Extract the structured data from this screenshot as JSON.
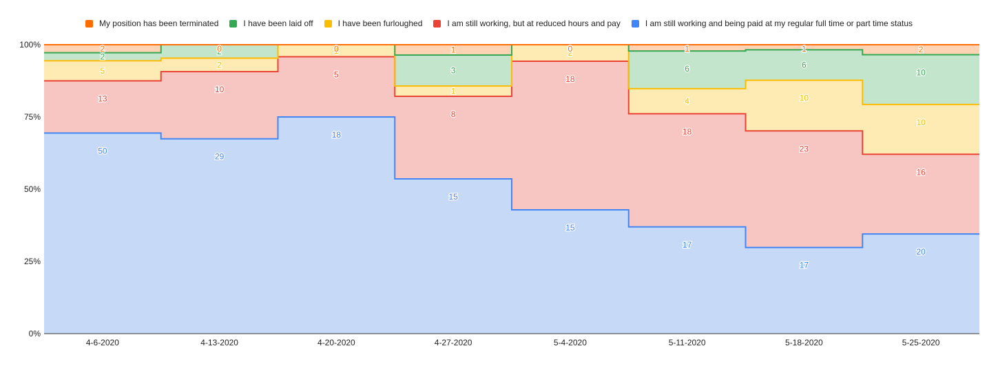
{
  "chart_data": {
    "type": "area",
    "stacked": "percent",
    "step": true,
    "categories": [
      "4-6-2020",
      "4-13-2020",
      "4-20-2020",
      "4-27-2020",
      "5-4-2020",
      "5-11-2020",
      "5-18-2020",
      "5-25-2020"
    ],
    "y_ticks": [
      "0%",
      "25%",
      "50%",
      "75%",
      "100%"
    ],
    "ylim": [
      0,
      100
    ],
    "grid": true,
    "legend_position": "top",
    "series": [
      {
        "key": "regular",
        "name": "I am still working and being paid at my regular full time or part time status",
        "color": "#4285f4",
        "fill": "#c6daf8",
        "values": [
          50,
          29,
          18,
          15,
          15,
          17,
          17,
          20
        ]
      },
      {
        "key": "reduced",
        "name": "I am still working, but at reduced hours and pay",
        "color": "#ea4335",
        "fill": "#f8c6c2",
        "values": [
          13,
          10,
          5,
          8,
          18,
          18,
          23,
          16
        ]
      },
      {
        "key": "furloughed",
        "name": "I have been furloughed",
        "color": "#fbbc04",
        "fill": "#feebb4",
        "values": [
          5,
          2,
          1,
          1,
          2,
          4,
          10,
          10
        ]
      },
      {
        "key": "laidoff",
        "name": "I have been laid off",
        "color": "#34a853",
        "fill": "#c3e5cb",
        "values": [
          2,
          2,
          0,
          3,
          0,
          6,
          6,
          10
        ]
      },
      {
        "key": "terminated",
        "name": "My position has been terminated",
        "color": "#ff6d01",
        "fill": "#ffd3b3",
        "values": [
          2,
          0,
          0,
          1,
          0,
          1,
          1,
          2
        ]
      }
    ],
    "legend_order": [
      "terminated",
      "laidoff",
      "furloughed",
      "reduced",
      "regular"
    ]
  }
}
